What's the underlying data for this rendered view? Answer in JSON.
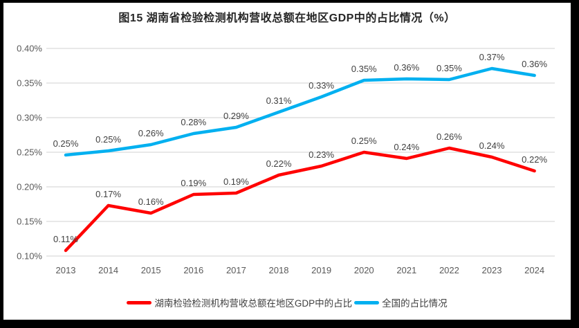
{
  "chart_data": {
    "type": "line",
    "title": "图15 湖南省检验检测机构营收总额在地区GDP中的占比情况（%）",
    "unit": "%",
    "categories": [
      "2013",
      "2014",
      "2015",
      "2016",
      "2017",
      "2018",
      "2019",
      "2020",
      "2021",
      "2022",
      "2023",
      "2024"
    ],
    "y_axis": {
      "min": 0.1,
      "max": 0.4,
      "step": 0.05,
      "tick_labels": [
        "0.40%",
        "0.35%",
        "0.30%",
        "0.25%",
        "0.20%",
        "0.15%",
        "0.10%"
      ]
    },
    "grid": true,
    "legend_position": "bottom",
    "series": [
      {
        "name": "湖南检验检测机构营收总额在地区GDP中的占比",
        "color": "#FF0000",
        "values": [
          0.11,
          0.17,
          0.16,
          0.19,
          0.19,
          0.22,
          0.23,
          0.25,
          0.24,
          0.26,
          0.24,
          0.22
        ],
        "labels": [
          "0.11%",
          "0.17%",
          "0.16%",
          "0.19%",
          "0.19%",
          "0.22%",
          "0.23%",
          "0.25%",
          "0.24%",
          "0.26%",
          "0.24%",
          "0.22%"
        ],
        "plot_values": [
          0.108,
          0.173,
          0.162,
          0.189,
          0.191,
          0.217,
          0.23,
          0.25,
          0.241,
          0.256,
          0.243,
          0.223
        ]
      },
      {
        "name": "全国的占比情况",
        "color": "#00B0F0",
        "values": [
          0.25,
          0.25,
          0.26,
          0.28,
          0.29,
          0.31,
          0.33,
          0.35,
          0.36,
          0.35,
          0.37,
          0.36
        ],
        "labels": [
          "0.25%",
          "0.25%",
          "0.26%",
          "0.28%",
          "0.29%",
          "0.31%",
          "0.33%",
          "0.35%",
          "0.36%",
          "0.35%",
          "0.37%",
          "0.36%"
        ],
        "plot_values": [
          0.246,
          0.252,
          0.261,
          0.277,
          0.286,
          0.308,
          0.33,
          0.354,
          0.356,
          0.355,
          0.371,
          0.361
        ]
      }
    ]
  },
  "colors": {
    "grid": "#D9D9D9",
    "tick_text": "#595959",
    "data_label_text": "#404040",
    "frame": "#000000",
    "background": "#FFFFFF"
  }
}
